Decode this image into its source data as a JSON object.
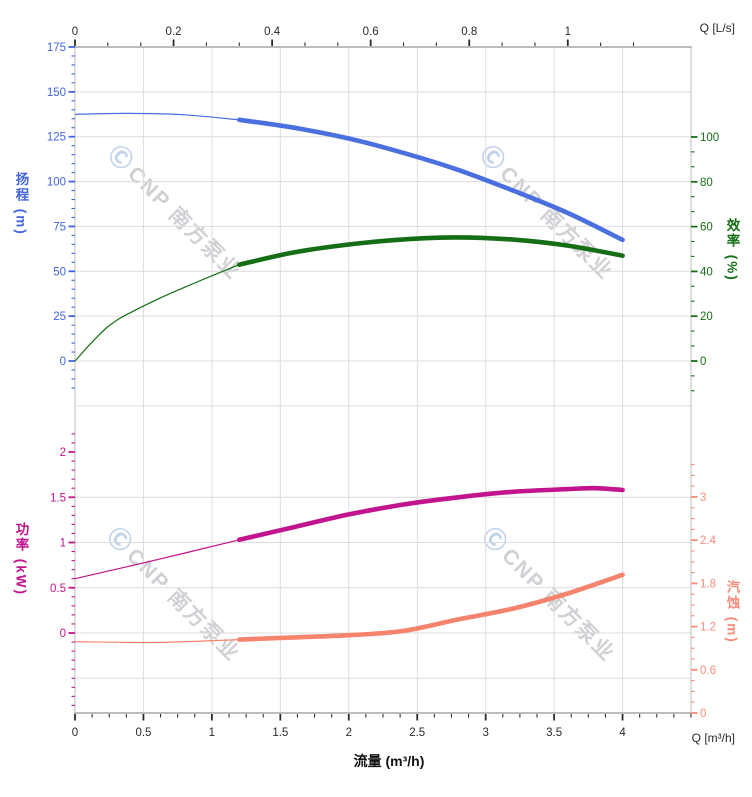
{
  "watermark": {
    "logo": "Ⓒ",
    "text": "CNP 南方泵业"
  },
  "axes": {
    "flow_top": {
      "name": "Q [L/s]",
      "color": "#2b2b2b",
      "majors": [
        {
          "v": 0,
          "label": "0"
        },
        {
          "v": 0.2,
          "label": "0.2"
        },
        {
          "v": 0.4,
          "label": "0.4"
        },
        {
          "v": 0.6,
          "label": "0.6"
        },
        {
          "v": 0.8,
          "label": "0.8"
        },
        {
          "v": 1,
          "label": "1"
        }
      ],
      "minor_step": 0.0666667,
      "minor_min": 0,
      "minor_max": 1.1334,
      "range": [
        0,
        1.25
      ]
    },
    "flow_bottom": {
      "name": "Q [m³/h]",
      "xlabel": "流量 (m³/h)",
      "color": "#2b2b2b",
      "majors": [
        {
          "v": 0,
          "label": "0"
        },
        {
          "v": 0.5,
          "label": "0.5"
        },
        {
          "v": 1,
          "label": "1"
        },
        {
          "v": 1.5,
          "label": "1.5"
        },
        {
          "v": 2,
          "label": "2"
        },
        {
          "v": 2.5,
          "label": "2.5"
        },
        {
          "v": 3,
          "label": "3"
        },
        {
          "v": 3.5,
          "label": "3.5"
        },
        {
          "v": 4,
          "label": "4"
        }
      ],
      "minor_step": 0.125,
      "minor_min": 0,
      "minor_max": 4.5,
      "range": [
        0,
        4.5
      ]
    },
    "head": {
      "title": "扬程 (m)",
      "color": "#4365dc",
      "majors": [
        {
          "v": 0,
          "label": "0"
        },
        {
          "v": 25,
          "label": "25"
        },
        {
          "v": 50,
          "label": "50"
        },
        {
          "v": 75,
          "label": "75"
        },
        {
          "v": 100,
          "label": "100"
        },
        {
          "v": 125,
          "label": "125"
        },
        {
          "v": 150,
          "label": "150"
        },
        {
          "v": 175,
          "label": "175"
        }
      ],
      "minor_step": 5,
      "minor_min": -15,
      "minor_max": 175,
      "range": [
        0,
        175
      ]
    },
    "eff": {
      "title": "效率 (%)",
      "color": "#156e15",
      "majors": [
        {
          "v": 0,
          "label": "0"
        },
        {
          "v": 20,
          "label": "20"
        },
        {
          "v": 40,
          "label": "40"
        },
        {
          "v": 60,
          "label": "60"
        },
        {
          "v": 80,
          "label": "80"
        },
        {
          "v": 100,
          "label": "100"
        }
      ],
      "minor_step": 6.6667,
      "minor_min": -13.3,
      "minor_max": 100,
      "range": [
        0,
        100
      ]
    },
    "power": {
      "title": "功率 (kW)",
      "color": "#c2148c",
      "majors": [
        {
          "v": 0,
          "label": "0"
        },
        {
          "v": 0.5,
          "label": "0.5"
        },
        {
          "v": 1,
          "label": "1"
        },
        {
          "v": 1.5,
          "label": "1.5"
        },
        {
          "v": 2,
          "label": "2"
        }
      ],
      "minor_step": 0.1,
      "minor_min": -0.8,
      "minor_max": 2.25,
      "range": [
        0,
        2
      ]
    },
    "npsh": {
      "title": "汽蚀 (m)",
      "color": "#f78b79",
      "majors": [
        {
          "v": 0,
          "label": "0"
        },
        {
          "v": 0.6,
          "label": "0.6"
        },
        {
          "v": 1.2,
          "label": "1.2"
        },
        {
          "v": 1.8,
          "label": "1.8"
        },
        {
          "v": 2.4,
          "label": "2.4"
        },
        {
          "v": 3,
          "label": "3"
        }
      ],
      "minor_step": 0.15,
      "minor_min": 0,
      "minor_max": 3.45,
      "range": [
        0,
        3
      ]
    }
  },
  "chart_data": [
    {
      "type": "line",
      "panel": "top",
      "x_unit": "m³/h",
      "x_range": [
        0,
        4.5
      ],
      "grid": "on",
      "series": [
        {
          "name": "扬程",
          "unit": "m",
          "axis": "head",
          "color": "#4a6fdf",
          "split_q": 1.2,
          "points": [
            [
              0,
              137.5
            ],
            [
              0.4,
              138.0
            ],
            [
              0.8,
              137.2
            ],
            [
              1.2,
              134.4
            ],
            [
              1.6,
              130.0
            ],
            [
              2,
              124.0
            ],
            [
              2.4,
              116.0
            ],
            [
              2.8,
              106.5
            ],
            [
              3.2,
              95.0
            ],
            [
              3.6,
              82.5
            ],
            [
              4,
              67.5
            ]
          ]
        },
        {
          "name": "效率",
          "unit": "%",
          "axis": "eff",
          "color": "#156e15",
          "split_q": 1.2,
          "points": [
            [
              0,
              0
            ],
            [
              0.15,
              10
            ],
            [
              0.3,
              18
            ],
            [
              0.6,
              27.5
            ],
            [
              0.9,
              35.5
            ],
            [
              1.2,
              43
            ],
            [
              1.6,
              48.5
            ],
            [
              2,
              52
            ],
            [
              2.4,
              54.3
            ],
            [
              2.8,
              55.2
            ],
            [
              3.2,
              54.2
            ],
            [
              3.6,
              51.5
            ],
            [
              4,
              47
            ]
          ]
        }
      ]
    },
    {
      "type": "line",
      "panel": "bottom",
      "x_unit": "m³/h",
      "x_range": [
        0,
        4.5
      ],
      "grid": "on",
      "series": [
        {
          "name": "功率",
          "unit": "kW",
          "axis": "power",
          "color": "#c2148c",
          "split_q": 1.2,
          "points": [
            [
              0,
              0.6
            ],
            [
              0.6,
              0.81
            ],
            [
              1.2,
              1.03
            ],
            [
              1.6,
              1.17
            ],
            [
              2,
              1.31
            ],
            [
              2.4,
              1.42
            ],
            [
              2.8,
              1.5
            ],
            [
              3.2,
              1.56
            ],
            [
              3.6,
              1.59
            ],
            [
              3.8,
              1.6
            ],
            [
              4,
              1.58
            ]
          ]
        },
        {
          "name": "汽蚀",
          "unit": "m",
          "axis": "npsh",
          "color": "#f6836e",
          "split_q": 1.2,
          "points": [
            [
              0,
              0.99
            ],
            [
              0.6,
              0.98
            ],
            [
              1.2,
              1.02
            ],
            [
              1.6,
              1.05
            ],
            [
              2,
              1.08
            ],
            [
              2.4,
              1.14
            ],
            [
              2.8,
              1.3
            ],
            [
              3.2,
              1.45
            ],
            [
              3.6,
              1.66
            ],
            [
              4,
              1.92
            ]
          ]
        }
      ]
    }
  ]
}
